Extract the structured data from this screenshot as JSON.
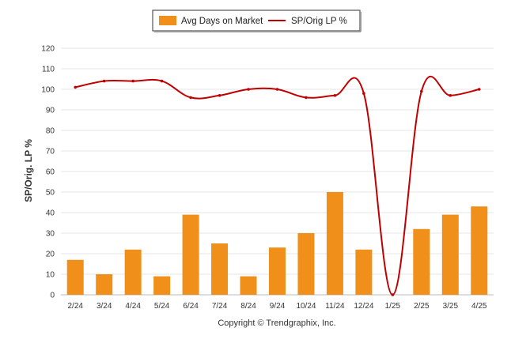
{
  "chart_data": {
    "type": "bar",
    "categories": [
      "2/24",
      "3/24",
      "4/24",
      "5/24",
      "6/24",
      "7/24",
      "8/24",
      "9/24",
      "10/24",
      "11/24",
      "12/24",
      "1/25",
      "2/25",
      "3/25",
      "4/25"
    ],
    "series": [
      {
        "name": "Avg Days on Market",
        "type": "bar",
        "color": "#F0901A",
        "values": [
          17,
          10,
          22,
          9,
          39,
          25,
          9,
          23,
          30,
          50,
          22,
          0,
          32,
          39,
          43
        ]
      },
      {
        "name": "SP/Orig LP %",
        "type": "line",
        "color": "#C00000",
        "values": [
          101,
          104,
          104,
          104,
          96,
          97,
          100,
          100,
          96,
          97,
          98,
          0,
          99,
          97,
          100
        ]
      }
    ],
    "ylabel": "SP/Orig. LP %",
    "ylim": [
      0,
      120
    ],
    "yticks": [
      0,
      10,
      20,
      30,
      40,
      50,
      60,
      70,
      80,
      90,
      100,
      110,
      120
    ],
    "grid": true,
    "legend_position": "top-center"
  },
  "footer": {
    "copyright": "Copyright © Trendgraphix, Inc."
  }
}
